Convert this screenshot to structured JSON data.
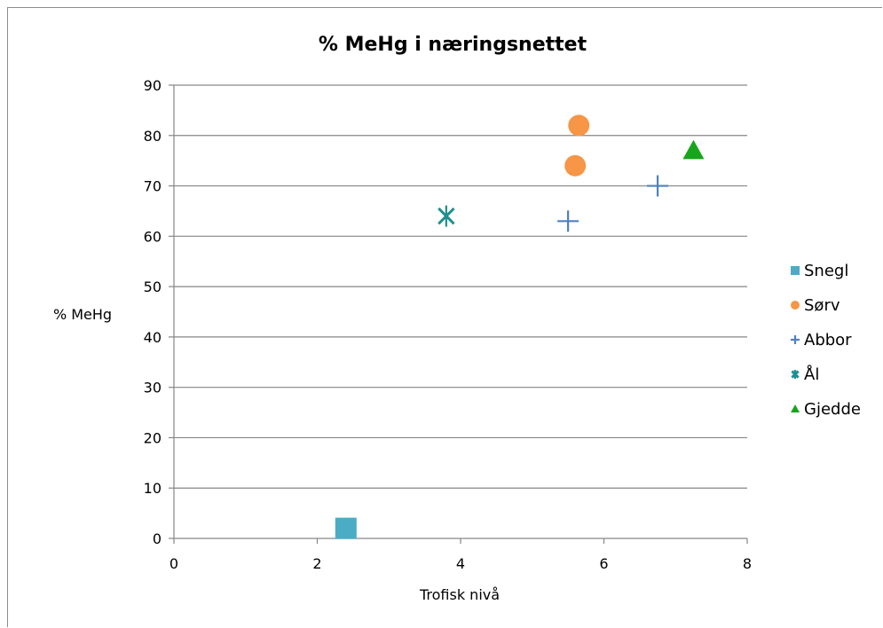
{
  "chart_data": {
    "type": "scatter",
    "title": "% MeHg i næringsnettet",
    "xlabel": "Trofisk nivå",
    "ylabel": "% MeHg",
    "xlim": [
      0,
      8
    ],
    "ylim": [
      0,
      90
    ],
    "x_ticks": [
      0,
      2,
      4,
      6,
      8
    ],
    "y_ticks": [
      0,
      10,
      20,
      30,
      40,
      50,
      60,
      70,
      80,
      90
    ],
    "grid": "horizontal",
    "legend_position": "right",
    "series": [
      {
        "name": "Snegl",
        "marker": "square",
        "color": "#4bacc6",
        "points": [
          {
            "x": 2.4,
            "y": 2
          }
        ]
      },
      {
        "name": "Sørv",
        "marker": "circle",
        "color": "#f79646",
        "points": [
          {
            "x": 5.65,
            "y": 82
          },
          {
            "x": 5.6,
            "y": 74
          }
        ]
      },
      {
        "name": "Abbor",
        "marker": "plus",
        "color": "#4f81bd",
        "points": [
          {
            "x": 5.5,
            "y": 63
          },
          {
            "x": 6.75,
            "y": 70
          }
        ]
      },
      {
        "name": "Ål",
        "marker": "star",
        "color": "#1f8f8f",
        "points": [
          {
            "x": 3.8,
            "y": 64
          }
        ]
      },
      {
        "name": "Gjedde",
        "marker": "triangle",
        "color": "#17a51c",
        "points": [
          {
            "x": 7.25,
            "y": 77
          }
        ]
      }
    ]
  }
}
